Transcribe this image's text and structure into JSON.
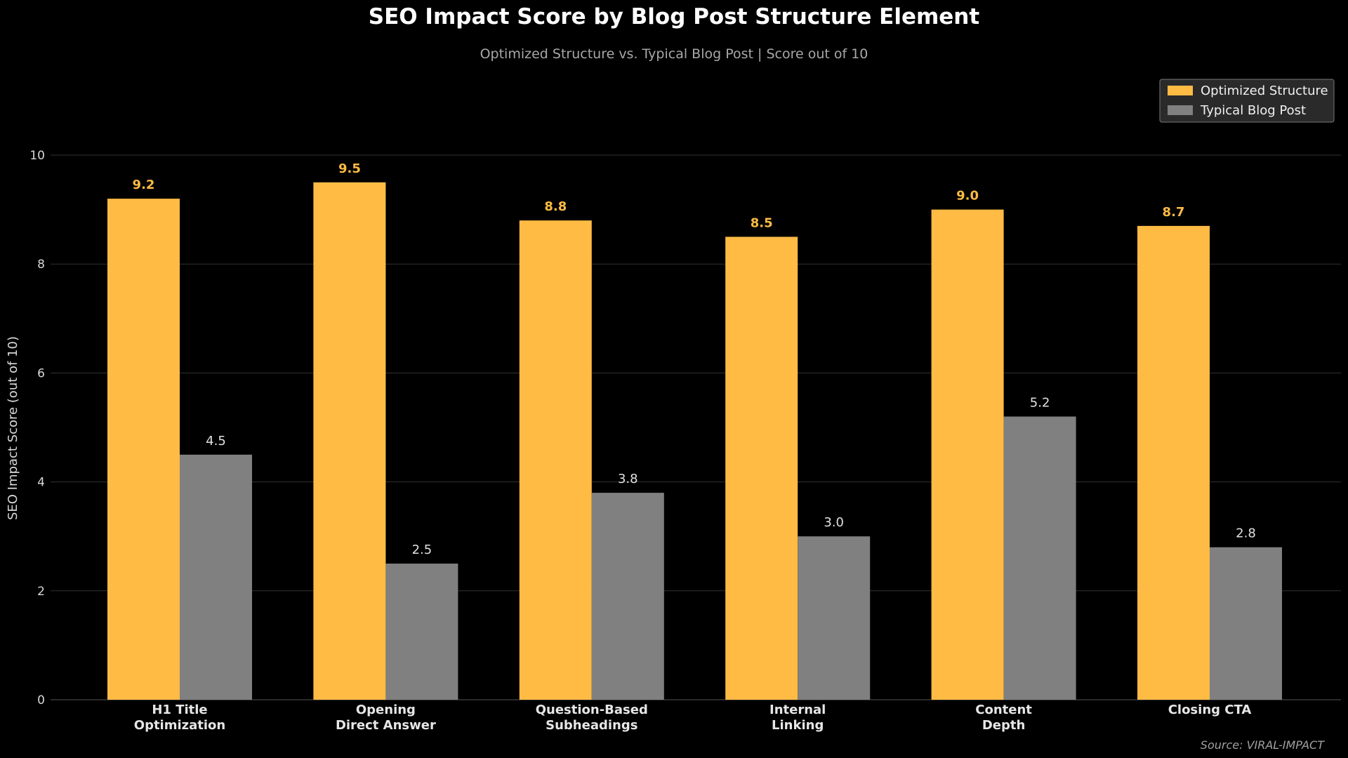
{
  "chart_data": {
    "type": "bar",
    "title": "SEO Impact Score by Blog Post Structure Element",
    "subtitle": "Optimized Structure vs. Typical Blog Post  |  Score out of 10",
    "ylabel": "SEO Impact Score (out of 10)",
    "xlabel": "",
    "ylim": [
      0,
      10
    ],
    "yticks": [
      0,
      2,
      4,
      6,
      8,
      10
    ],
    "grid": true,
    "legend_position": "top-right",
    "categories": [
      [
        "H1 Title",
        "Optimization"
      ],
      [
        "Opening",
        "Direct Answer"
      ],
      [
        "Question-Based",
        "Subheadings"
      ],
      [
        "Internal",
        "Linking"
      ],
      [
        "Content",
        "Depth"
      ],
      [
        "Closing CTA"
      ]
    ],
    "series": [
      {
        "name": "Optimized Structure",
        "color": "#ffbb44",
        "label_color": "#ffbb44",
        "values": [
          9.2,
          9.5,
          8.8,
          8.5,
          9.0,
          8.7
        ],
        "value_labels": [
          "9.2",
          "9.5",
          "8.8",
          "8.5",
          "9.0",
          "8.7"
        ]
      },
      {
        "name": "Typical Blog Post",
        "color": "#808080",
        "label_color": "#e0e0e0",
        "values": [
          4.5,
          2.5,
          3.8,
          3.0,
          5.2,
          2.8
        ],
        "value_labels": [
          "4.5",
          "2.5",
          "3.8",
          "3.0",
          "5.2",
          "2.8"
        ]
      }
    ],
    "source": "Source: VIRAL-IMPACT",
    "background_color": "#000000",
    "grid_color": "#333333"
  }
}
